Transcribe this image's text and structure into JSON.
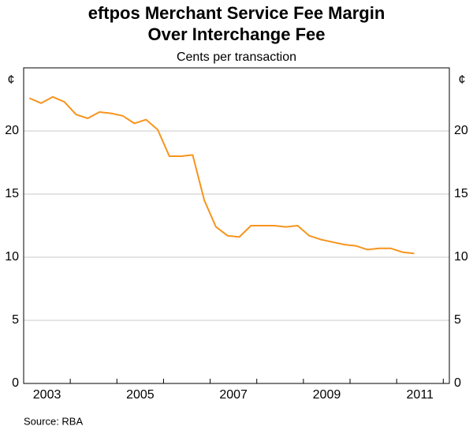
{
  "chart_data": {
    "type": "line",
    "title": [
      "eftpos Merchant Service Fee Margin",
      "Over Interchange Fee"
    ],
    "subtitle": "Cents per transaction",
    "y_unit": "¢",
    "source": "Source: RBA",
    "x": [
      2003.125,
      2003.375,
      2003.625,
      2003.875,
      2004.125,
      2004.375,
      2004.625,
      2004.875,
      2005.125,
      2005.375,
      2005.625,
      2005.875,
      2006.125,
      2006.375,
      2006.625,
      2006.875,
      2007.125,
      2007.375,
      2007.625,
      2007.875,
      2008.125,
      2008.375,
      2008.625,
      2008.875,
      2009.125,
      2009.375,
      2009.625,
      2009.875,
      2010.125,
      2010.375,
      2010.625,
      2010.875,
      2011.125,
      2011.375
    ],
    "series": [
      {
        "color": "#f7941d",
        "values": [
          22.6,
          22.2,
          22.7,
          22.3,
          21.3,
          21.0,
          21.5,
          21.4,
          21.2,
          20.6,
          20.9,
          20.1,
          18.0,
          18.0,
          18.1,
          14.5,
          12.4,
          11.7,
          11.6,
          12.5,
          12.5,
          12.5,
          12.4,
          12.5,
          11.7,
          11.4,
          11.2,
          11.0,
          10.9,
          10.6,
          10.7,
          10.7,
          10.4,
          10.3
        ]
      }
    ],
    "xlim": [
      2003,
      2012.13
    ],
    "xticks": [
      {
        "value": 2003.5,
        "label": "2003"
      },
      {
        "value": 2005.5,
        "label": "2005"
      },
      {
        "value": 2007.5,
        "label": "2007"
      },
      {
        "value": 2009.5,
        "label": "2009"
      },
      {
        "value": 2011.5,
        "label": "2011"
      }
    ],
    "xminorticks": [
      2004,
      2005,
      2006,
      2007,
      2008,
      2009,
      2010,
      2011,
      2012
    ],
    "ylim": [
      0,
      25
    ],
    "yticks": [
      0,
      5,
      10,
      15,
      20
    ],
    "grid": true
  }
}
